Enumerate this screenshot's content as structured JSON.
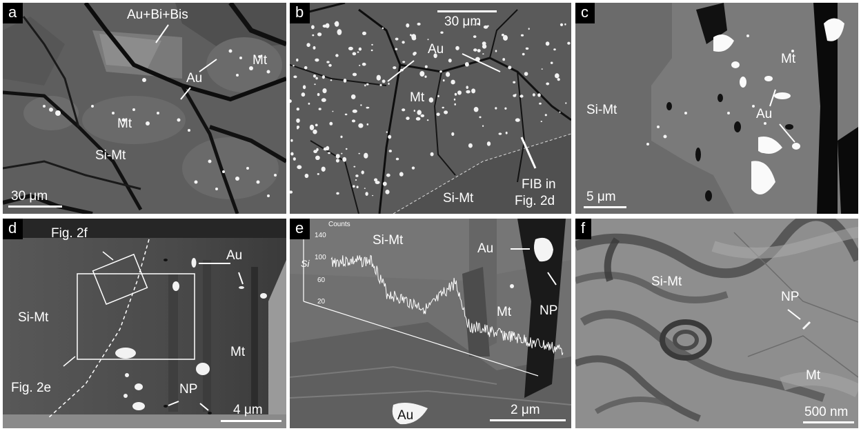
{
  "figure": {
    "panels": {
      "a": {
        "tag": "a",
        "labels": {
          "au_bi": "Au+Bi+Bis",
          "au": "Au",
          "mt1": "Mt",
          "mt2": "Mt",
          "simt": "Si-Mt"
        },
        "scale": "30 μm"
      },
      "b": {
        "tag": "b",
        "labels": {
          "au": "Au",
          "mt": "Mt",
          "simt": "Si-Mt",
          "fib1": "FIB in",
          "fib2": "Fig. 2d"
        },
        "scale": "30 μm"
      },
      "c": {
        "tag": "c",
        "labels": {
          "simt": "Si-Mt",
          "mt": "Mt",
          "au": "Au"
        },
        "scale": "5 μm"
      },
      "d": {
        "tag": "d",
        "labels": {
          "fig2f": "Fig. 2f",
          "fig2e": "Fig. 2e",
          "simt": "Si-Mt",
          "au": "Au",
          "mt": "Mt",
          "np": "NP"
        },
        "scale": "4 μm"
      },
      "e": {
        "tag": "e",
        "labels": {
          "simt": "Si-Mt",
          "au_top": "Au",
          "au_bottom": "Au",
          "mt": "Mt",
          "np": "NP",
          "counts": "Counts",
          "si": "Si"
        },
        "y_ticks": [
          "140",
          "100",
          "60",
          "20"
        ],
        "scale": "2 μm"
      },
      "f": {
        "tag": "f",
        "labels": {
          "simt": "Si-Mt",
          "np": "NP",
          "mt": "Mt"
        },
        "scale": "500 nm"
      }
    },
    "colors": {
      "annotation": "#ffffff",
      "tag_bg": "#000000"
    }
  }
}
